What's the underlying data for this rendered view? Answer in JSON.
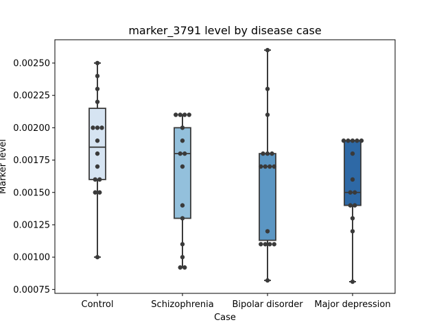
{
  "chart_data": {
    "type": "box",
    "title": "marker_3791 level by disease case",
    "xlabel": "Case",
    "ylabel": "Marker level",
    "ylim": [
      0.00072,
      0.00268
    ],
    "yticks": [
      "0.00075",
      "0.00100",
      "0.00125",
      "0.00150",
      "0.00175",
      "0.00200",
      "0.00225",
      "0.00250"
    ],
    "categories": [
      "Control",
      "Schizophrenia",
      "Bipolar disorder",
      "Major depression"
    ],
    "colors": [
      "#d6e4f2",
      "#93c0dc",
      "#5b96c3",
      "#2e69a6"
    ],
    "series": [
      {
        "name": "Control",
        "q1": 0.0016,
        "median": 0.00185,
        "q3": 0.00215,
        "whisker_low": 0.001,
        "whisker_high": 0.0025,
        "points": [
          0.001,
          0.0015,
          0.0015,
          0.0016,
          0.0016,
          0.0017,
          0.0018,
          0.0019,
          0.002,
          0.002,
          0.002,
          0.0022,
          0.0023,
          0.0024,
          0.0025
        ]
      },
      {
        "name": "Schizophrenia",
        "q1": 0.0013,
        "median": 0.0018,
        "q3": 0.002,
        "whisker_low": 0.00092,
        "whisker_high": 0.0021,
        "points": [
          0.00092,
          0.00092,
          0.001,
          0.0011,
          0.0013,
          0.0014,
          0.0017,
          0.0018,
          0.0018,
          0.0019,
          0.002,
          0.0021,
          0.0021,
          0.0021,
          0.0021
        ]
      },
      {
        "name": "Bipolar disorder",
        "q1": 0.00113,
        "median": 0.0017,
        "q3": 0.0018,
        "whisker_low": 0.00082,
        "whisker_high": 0.0026,
        "points": [
          0.00082,
          0.0011,
          0.0011,
          0.0011,
          0.0011,
          0.0012,
          0.0017,
          0.0017,
          0.0017,
          0.0017,
          0.0018,
          0.0018,
          0.0018,
          0.0021,
          0.0023,
          0.0026
        ]
      },
      {
        "name": "Major depression",
        "q1": 0.0014,
        "median": 0.0015,
        "q3": 0.0019,
        "whisker_low": 0.00081,
        "whisker_high": 0.0019,
        "points": [
          0.00081,
          0.0012,
          0.0013,
          0.0014,
          0.0014,
          0.0015,
          0.0015,
          0.0016,
          0.0018,
          0.0019,
          0.0019,
          0.0019,
          0.0019,
          0.0019
        ]
      }
    ]
  }
}
